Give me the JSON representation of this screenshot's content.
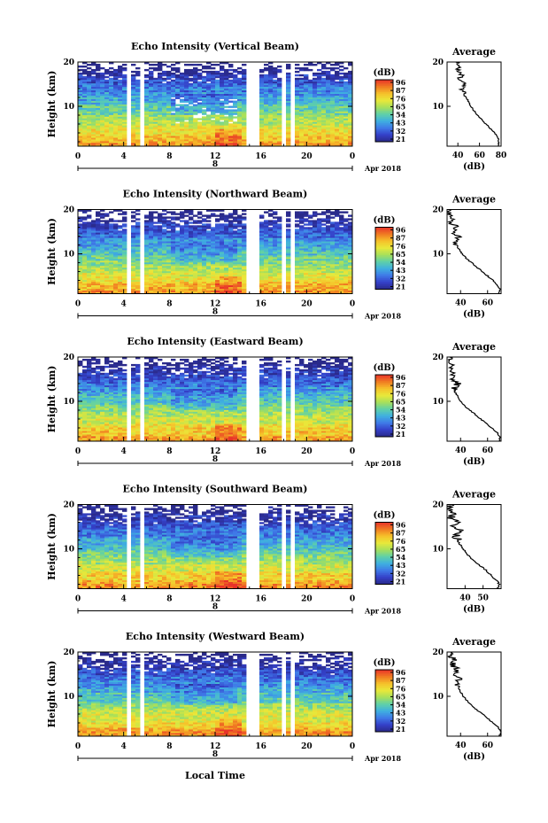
{
  "chart_data": {
    "type": "heatmap",
    "xlabel": "Local Time",
    "date_label": "Apr 2018",
    "date_number": "8",
    "colorbar": {
      "unit": "(dB)",
      "ticks": [
        "96",
        "87",
        "76",
        "65",
        "54",
        "43",
        "32",
        "21"
      ],
      "colors": [
        "#e8322a",
        "#f07a22",
        "#f6c02a",
        "#e9e83a",
        "#a8e05a",
        "#5fd0a8",
        "#3fb0e0",
        "#3f7ae8",
        "#3440c8",
        "#2a2a8a"
      ]
    },
    "x_ticks": [
      "0",
      "4",
      "8",
      "12",
      "16",
      "20",
      "0"
    ],
    "xlim": [
      0,
      24
    ],
    "y_ticks": [
      "20",
      "10"
    ],
    "ylim": [
      1,
      20
    ],
    "ylabel": "Height (km)",
    "data_gaps_hours": [
      [
        4.1,
        4.5
      ],
      [
        5.6,
        5.9
      ],
      [
        14.6,
        15.8
      ],
      [
        17.8,
        18.1
      ],
      [
        18.6,
        19.0
      ]
    ],
    "average_profile": {
      "title": "Average",
      "xlabel": "(dB)",
      "y_ticks": [
        "20",
        "10"
      ]
    },
    "panels": [
      {
        "title": "Echo Intensity (Vertical Beam)",
        "avg_ticks": [
          "40",
          "60",
          "80"
        ],
        "avg_xlim": [
          30,
          80
        ],
        "avg_profile": [
          [
            77,
            1.0
          ],
          [
            78,
            2.0
          ],
          [
            77,
            3.0
          ],
          [
            74,
            4.0
          ],
          [
            70,
            5.0
          ],
          [
            66,
            6.0
          ],
          [
            62,
            7.0
          ],
          [
            58,
            8.0
          ],
          [
            55,
            9.0
          ],
          [
            52,
            10.0
          ],
          [
            50,
            11.0
          ],
          [
            48,
            12.0
          ],
          [
            45,
            13.0
          ],
          [
            44,
            14.0
          ],
          [
            46,
            15.0
          ],
          [
            41,
            16.0
          ],
          [
            43,
            17.0
          ],
          [
            39,
            18.0
          ],
          [
            42,
            19.0
          ],
          [
            38,
            20.0
          ]
        ]
      },
      {
        "title": "Echo Intensity (Northward Beam)",
        "avg_ticks": [
          "40",
          "60"
        ],
        "avg_xlim": [
          30,
          70
        ],
        "avg_profile": [
          [
            68,
            1.0
          ],
          [
            69,
            2.0
          ],
          [
            67,
            3.0
          ],
          [
            64,
            4.0
          ],
          [
            60,
            5.0
          ],
          [
            56,
            6.0
          ],
          [
            52,
            7.0
          ],
          [
            48,
            8.0
          ],
          [
            44,
            9.0
          ],
          [
            41,
            10.0
          ],
          [
            39,
            11.0
          ],
          [
            37,
            12.0
          ],
          [
            36,
            13.0
          ],
          [
            39,
            14.0
          ],
          [
            34,
            15.0
          ],
          [
            37,
            16.0
          ],
          [
            33,
            17.0
          ],
          [
            35,
            18.0
          ],
          [
            32,
            19.0
          ],
          [
            33,
            20.0
          ]
        ]
      },
      {
        "title": "Echo Intensity (Eastward Beam)",
        "avg_ticks": [
          "40",
          "60"
        ],
        "avg_xlim": [
          30,
          70
        ],
        "avg_profile": [
          [
            69,
            1.0
          ],
          [
            69,
            2.0
          ],
          [
            67,
            3.0
          ],
          [
            63,
            4.0
          ],
          [
            59,
            5.0
          ],
          [
            55,
            6.0
          ],
          [
            51,
            7.0
          ],
          [
            47,
            8.0
          ],
          [
            43,
            9.0
          ],
          [
            40,
            10.0
          ],
          [
            38,
            11.0
          ],
          [
            36,
            12.0
          ],
          [
            35,
            13.0
          ],
          [
            38,
            14.0
          ],
          [
            33,
            15.0
          ],
          [
            35,
            16.0
          ],
          [
            32,
            17.0
          ],
          [
            34,
            18.0
          ],
          [
            31,
            19.0
          ],
          [
            32,
            20.0
          ]
        ]
      },
      {
        "title": "Echo Intensity (Southward Beam)",
        "avg_ticks": [
          "40",
          "50"
        ],
        "avg_xlim": [
          30,
          60
        ],
        "avg_profile": [
          [
            58,
            1.0
          ],
          [
            59,
            2.0
          ],
          [
            57,
            3.0
          ],
          [
            55,
            4.0
          ],
          [
            52,
            5.0
          ],
          [
            49,
            6.0
          ],
          [
            46,
            7.0
          ],
          [
            43,
            8.0
          ],
          [
            41,
            9.0
          ],
          [
            39,
            10.0
          ],
          [
            37,
            11.0
          ],
          [
            36,
            12.0
          ],
          [
            35,
            13.0
          ],
          [
            38,
            14.0
          ],
          [
            33,
            15.0
          ],
          [
            37,
            16.0
          ],
          [
            32,
            17.0
          ],
          [
            34,
            18.0
          ],
          [
            31,
            19.0
          ],
          [
            33,
            20.0
          ]
        ]
      },
      {
        "title": "Echo Intensity (Westward Beam)",
        "avg_ticks": [
          "40",
          "60"
        ],
        "avg_xlim": [
          30,
          70
        ],
        "avg_profile": [
          [
            69,
            1.0
          ],
          [
            70,
            2.0
          ],
          [
            68,
            3.0
          ],
          [
            64,
            4.0
          ],
          [
            60,
            5.0
          ],
          [
            56,
            6.0
          ],
          [
            52,
            7.0
          ],
          [
            48,
            8.0
          ],
          [
            45,
            9.0
          ],
          [
            42,
            10.0
          ],
          [
            40,
            11.0
          ],
          [
            38,
            12.0
          ],
          [
            37,
            13.0
          ],
          [
            40,
            14.0
          ],
          [
            35,
            15.0
          ],
          [
            38,
            16.0
          ],
          [
            34,
            17.0
          ],
          [
            36,
            18.0
          ],
          [
            33,
            19.0
          ],
          [
            34,
            20.0
          ]
        ]
      }
    ]
  }
}
